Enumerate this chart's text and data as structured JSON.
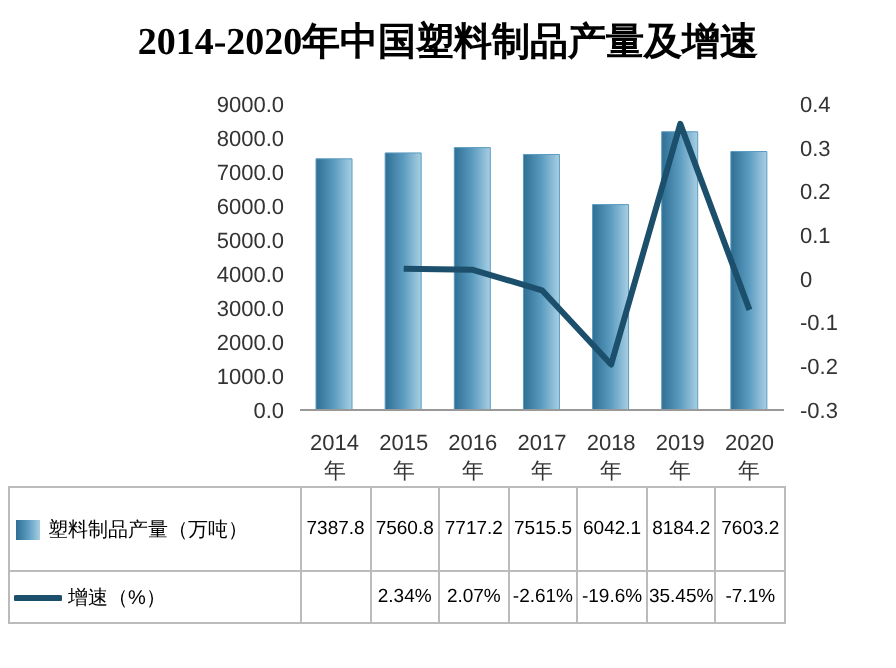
{
  "chart_data": {
    "type": "bar",
    "title": "2014-2020年中国塑料制品产量及增速",
    "categories": [
      "2014年",
      "2015年",
      "2016年",
      "2017年",
      "2018年",
      "2019年",
      "2020年"
    ],
    "series": [
      {
        "name": "塑料制品产量（万吨）",
        "color": "#5b9bc0",
        "values": [
          7387.8,
          7560.8,
          7717.2,
          7515.5,
          6042.1,
          8184.2,
          7603.2
        ],
        "value_labels": [
          "7387.8",
          "7560.8",
          "7717.2",
          "7515.5",
          "6042.1",
          "8184.2",
          "7603.2"
        ]
      },
      {
        "name": "增速（%）",
        "type": "line",
        "axis": "y2",
        "color": "#1b4f6b",
        "values": [
          null,
          0.0234,
          0.0207,
          -0.0261,
          -0.196,
          0.3545,
          -0.071
        ],
        "value_labels": [
          null,
          "2.34%",
          "2.07%",
          "-2.61%",
          "-19.6%",
          "35.45%",
          "-7.1%"
        ]
      }
    ],
    "ylim": [
      0,
      9000
    ],
    "yticks": [
      {
        "value": 0,
        "label": "0.0"
      },
      {
        "value": 1000,
        "label": "1000.0"
      },
      {
        "value": 2000,
        "label": "2000.0"
      },
      {
        "value": 3000,
        "label": "3000.0"
      },
      {
        "value": 4000,
        "label": "4000.0"
      },
      {
        "value": 5000,
        "label": "5000.0"
      },
      {
        "value": 6000,
        "label": "6000.0"
      },
      {
        "value": 7000,
        "label": "7000.0"
      },
      {
        "value": 8000,
        "label": "8000.0"
      },
      {
        "value": 9000,
        "label": "9000.0"
      }
    ],
    "y2lim": [
      -0.3,
      0.4
    ],
    "y2ticks": [
      -0.3,
      -0.2,
      -0.1,
      0,
      0.1,
      0.2,
      0.3,
      0.4
    ],
    "legend": "bottom",
    "marker": "none",
    "line_style": "solid"
  }
}
